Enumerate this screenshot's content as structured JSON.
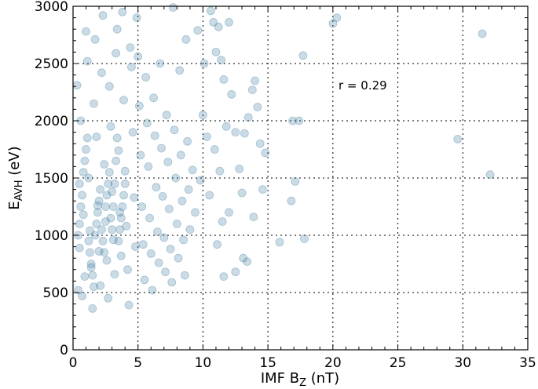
{
  "chart_data": {
    "type": "scatter",
    "title": "",
    "xlabel_prefix": "IMF B",
    "xlabel_sub": "Z",
    "xlabel_suffix": " (nT)",
    "ylabel_prefix": "E",
    "ylabel_sub": "AVH",
    "ylabel_suffix": " (eV)",
    "xlim": [
      0,
      35
    ],
    "ylim": [
      0,
      3000
    ],
    "xticks": [
      0,
      5,
      10,
      15,
      20,
      25,
      30,
      35
    ],
    "yticks": [
      0,
      500,
      1000,
      1500,
      2000,
      2500,
      3000
    ],
    "grid": true,
    "annotation": {
      "text": "r = 0.29",
      "x": 20.4,
      "y": 2300
    },
    "marker_color": "#2a6f97",
    "marker_opacity": 0.25,
    "points": [
      [
        0.5,
        1450
      ],
      [
        0.3,
        2310
      ],
      [
        0.6,
        2000
      ],
      [
        0.4,
        520
      ],
      [
        0.7,
        470
      ],
      [
        0.5,
        890
      ],
      [
        0.8,
        1180
      ],
      [
        0.9,
        640
      ],
      [
        1.0,
        2780
      ],
      [
        1.1,
        2520
      ],
      [
        1.2,
        1500
      ],
      [
        1.3,
        1040
      ],
      [
        1.4,
        720
      ],
      [
        1.5,
        360
      ],
      [
        1.6,
        2150
      ],
      [
        1.7,
        2710
      ],
      [
        1.8,
        1860
      ],
      [
        1.9,
        1260
      ],
      [
        2.0,
        860
      ],
      [
        2.1,
        560
      ],
      [
        2.2,
        2420
      ],
      [
        2.3,
        2920
      ],
      [
        2.4,
        1620
      ],
      [
        2.5,
        1120
      ],
      [
        2.6,
        780
      ],
      [
        2.7,
        450
      ],
      [
        2.8,
        2300
      ],
      [
        2.9,
        1950
      ],
      [
        3.0,
        1380
      ],
      [
        3.1,
        960
      ],
      [
        3.2,
        660
      ],
      [
        3.3,
        2590
      ],
      [
        3.4,
        2800
      ],
      [
        3.5,
        1740
      ],
      [
        3.6,
        1200
      ],
      [
        3.7,
        820
      ],
      [
        3.8,
        2950
      ],
      [
        3.9,
        2180
      ],
      [
        4.0,
        1560
      ],
      [
        4.1,
        1080
      ],
      [
        4.2,
        700
      ],
      [
        4.3,
        390
      ],
      [
        4.4,
        2640
      ],
      [
        4.5,
        2470
      ],
      [
        4.6,
        1900
      ],
      [
        4.7,
        1330
      ],
      [
        4.8,
        900
      ],
      [
        4.9,
        2900
      ],
      [
        5.0,
        2560
      ],
      [
        5.1,
        2130
      ],
      [
        5.2,
        1700
      ],
      [
        5.3,
        1250
      ],
      [
        5.4,
        920
      ],
      [
        5.5,
        610
      ],
      [
        5.6,
        2380
      ],
      [
        5.7,
        1980
      ],
      [
        5.8,
        1600
      ],
      [
        5.9,
        1150
      ],
      [
        6.0,
        840
      ],
      [
        6.1,
        520
      ],
      [
        6.2,
        2200
      ],
      [
        6.3,
        1870
      ],
      [
        6.4,
        1420
      ],
      [
        6.5,
        1030
      ],
      [
        6.6,
        760
      ],
      [
        6.7,
        2500
      ],
      [
        6.8,
        1760
      ],
      [
        6.9,
        1340
      ],
      [
        7.0,
        980
      ],
      [
        7.1,
        680
      ],
      [
        7.2,
        2050
      ],
      [
        7.3,
        1640
      ],
      [
        7.4,
        1230
      ],
      [
        7.5,
        880
      ],
      [
        7.6,
        590
      ],
      [
        7.7,
        2990
      ],
      [
        7.8,
        1920
      ],
      [
        7.9,
        1500
      ],
      [
        8.0,
        1100
      ],
      [
        8.1,
        800
      ],
      [
        8.2,
        2440
      ],
      [
        8.3,
        1700
      ],
      [
        8.4,
        1300
      ],
      [
        8.5,
        960
      ],
      [
        8.6,
        650
      ],
      [
        8.7,
        2710
      ],
      [
        8.8,
        1820
      ],
      [
        8.9,
        1400
      ],
      [
        9.0,
        1050
      ],
      [
        9.2,
        1570
      ],
      [
        9.4,
        1200
      ],
      [
        9.6,
        2790
      ],
      [
        9.8,
        1480
      ],
      [
        10.0,
        2050
      ],
      [
        10.1,
        2500
      ],
      [
        10.3,
        1860
      ],
      [
        10.5,
        1350
      ],
      [
        10.6,
        2960
      ],
      [
        10.8,
        2860
      ],
      [
        11.0,
        2600
      ],
      [
        11.2,
        2820
      ],
      [
        11.4,
        2530
      ],
      [
        11.6,
        2360
      ],
      [
        11.8,
        1950
      ],
      [
        10.9,
        1750
      ],
      [
        11.3,
        1560
      ],
      [
        11.5,
        1120
      ],
      [
        11.1,
        920
      ],
      [
        11.6,
        640
      ],
      [
        12.0,
        2860
      ],
      [
        12.2,
        2230
      ],
      [
        12.5,
        1900
      ],
      [
        12.8,
        1580
      ],
      [
        13.0,
        1370
      ],
      [
        13.2,
        1890
      ],
      [
        13.5,
        2030
      ],
      [
        13.8,
        2270
      ],
      [
        14.0,
        2350
      ],
      [
        14.2,
        2120
      ],
      [
        14.4,
        1800
      ],
      [
        14.6,
        1400
      ],
      [
        14.8,
        1720
      ],
      [
        13.1,
        800
      ],
      [
        13.4,
        770
      ],
      [
        12.5,
        680
      ],
      [
        12.0,
        1200
      ],
      [
        13.9,
        1160
      ],
      [
        15.9,
        940
      ],
      [
        16.8,
        1300
      ],
      [
        16.9,
        2000
      ],
      [
        17.1,
        1470
      ],
      [
        17.4,
        2000
      ],
      [
        17.7,
        2570
      ],
      [
        17.8,
        970
      ],
      [
        20.0,
        2850
      ],
      [
        20.3,
        2900
      ],
      [
        29.6,
        1840
      ],
      [
        31.5,
        2760
      ],
      [
        32.1,
        1530
      ],
      [
        0.4,
        1000
      ],
      [
        0.5,
        1100
      ],
      [
        0.6,
        1250
      ],
      [
        0.7,
        1350
      ],
      [
        0.8,
        1550
      ],
      [
        0.9,
        1650
      ],
      [
        1.0,
        1750
      ],
      [
        1.1,
        1850
      ],
      [
        1.2,
        950
      ],
      [
        1.3,
        850
      ],
      [
        1.4,
        750
      ],
      [
        1.5,
        650
      ],
      [
        1.6,
        550
      ],
      [
        1.7,
        1000
      ],
      [
        1.8,
        1100
      ],
      [
        1.9,
        1200
      ],
      [
        2.0,
        1300
      ],
      [
        2.1,
        1400
      ],
      [
        2.2,
        1050
      ],
      [
        2.3,
        950
      ],
      [
        2.4,
        850
      ],
      [
        2.5,
        1250
      ],
      [
        2.6,
        1350
      ],
      [
        2.7,
        1450
      ],
      [
        2.8,
        1550
      ],
      [
        2.9,
        1150
      ],
      [
        3.0,
        1050
      ],
      [
        3.1,
        1250
      ],
      [
        3.2,
        1450
      ],
      [
        3.3,
        1650
      ],
      [
        3.4,
        1850
      ],
      [
        3.5,
        950
      ],
      [
        3.6,
        1050
      ],
      [
        3.7,
        1150
      ],
      [
        3.8,
        1250
      ],
      [
        3.9,
        1350
      ],
      [
        4.0,
        1450
      ]
    ]
  }
}
